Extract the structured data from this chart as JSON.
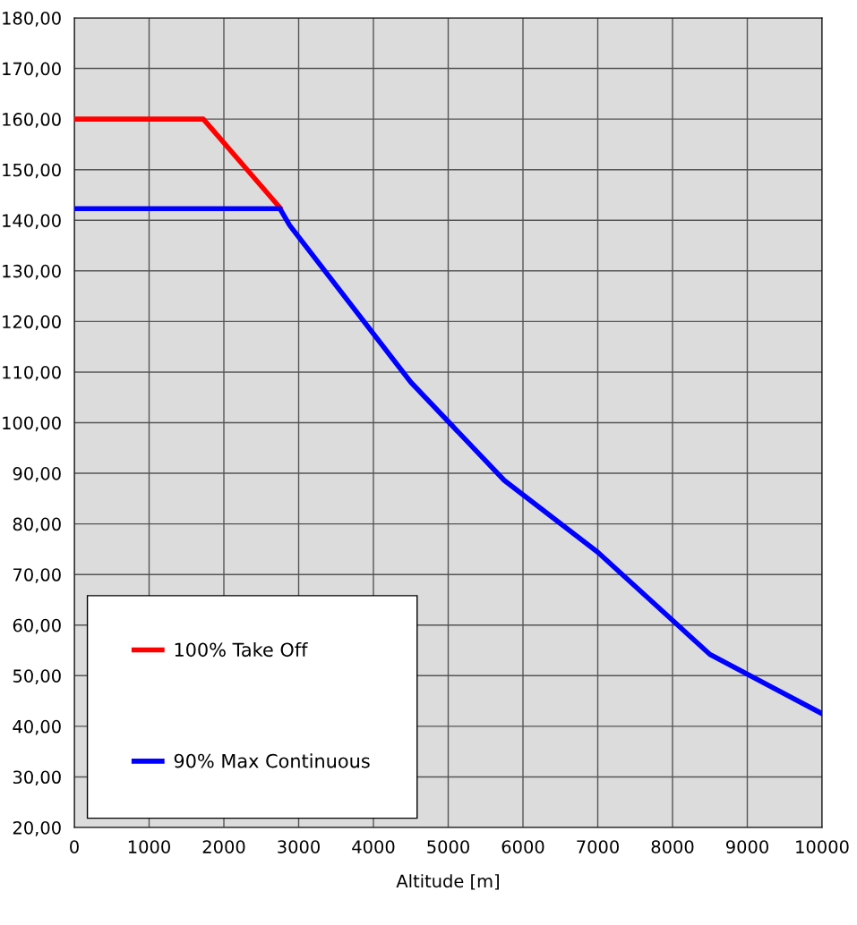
{
  "chart_data": {
    "type": "line",
    "xlabel": "Altitude [m]",
    "series": [
      {
        "name": "100% Take Off",
        "color": "#ff0000",
        "x": [
          0,
          1725,
          2750
        ],
        "values": [
          160,
          160,
          142.5
        ]
      },
      {
        "name": "90% Max Continuous",
        "color": "#0000ff",
        "x": [
          0,
          2750,
          2880,
          4500,
          5750,
          7000,
          8500,
          10000
        ],
        "values": [
          142.3,
          142.3,
          139,
          108,
          88.6,
          74.4,
          54.2,
          42.5
        ]
      }
    ],
    "xlim": [
      0,
      10000
    ],
    "xticks": [
      0,
      1000,
      2000,
      3000,
      4000,
      5000,
      6000,
      7000,
      8000,
      9000,
      10000
    ],
    "ylim": [
      20,
      180
    ],
    "yticks": [
      {
        "value": 20,
        "label": "20,00"
      },
      {
        "value": 30,
        "label": "30,00"
      },
      {
        "value": 40,
        "label": "40,00"
      },
      {
        "value": 50,
        "label": "50,00"
      },
      {
        "value": 60,
        "label": "60,00"
      },
      {
        "value": 70,
        "label": "70,00"
      },
      {
        "value": 80,
        "label": "80,00"
      },
      {
        "value": 90,
        "label": "90,00"
      },
      {
        "value": 100,
        "label": "100,00"
      },
      {
        "value": 110,
        "label": "110,00"
      },
      {
        "value": 120,
        "label": "120,00"
      },
      {
        "value": 130,
        "label": "130,00"
      },
      {
        "value": 140,
        "label": "140,00"
      },
      {
        "value": 150,
        "label": "150,00"
      },
      {
        "value": 160,
        "label": "160,00"
      },
      {
        "value": 170,
        "label": "170,00"
      },
      {
        "value": 180,
        "label": "180,00"
      }
    ],
    "grid": true,
    "legend": "bottom left",
    "marker": "none",
    "line_style": "solid"
  }
}
